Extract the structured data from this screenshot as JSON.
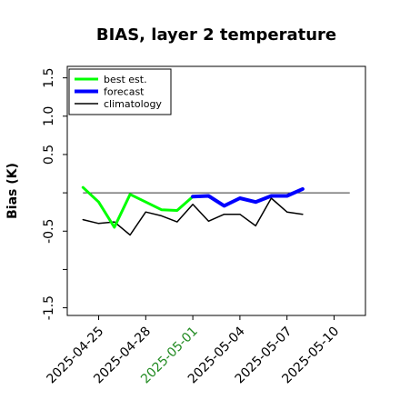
{
  "chart_data": {
    "type": "line",
    "title": "BIAS, layer 2 temperature",
    "xlabel": "",
    "ylabel": "Bias (K)",
    "xlim": [
      "2025-04-23",
      "2025-05-12"
    ],
    "ylim": [
      -1.6,
      1.65
    ],
    "y_ticks": [
      -1.5,
      -1.0,
      -0.5,
      0.0,
      0.5,
      1.0,
      1.5
    ],
    "y_tick_labels": [
      "-1.5",
      "",
      "-0.5",
      "",
      "0.5",
      "1.0",
      "1.5"
    ],
    "x_ticks": [
      "2025-04-25",
      "2025-04-28",
      "2025-05-01",
      "2025-05-04",
      "2025-05-07",
      "2025-05-10"
    ],
    "x_tick_labels": [
      "2025-04-25",
      "2025-04-28",
      "2025-05-01",
      "2025-05-04",
      "2025-05-07",
      "2025-05-10"
    ],
    "x_tick_colors": [
      "#000000",
      "#000000",
      "#228B22",
      "#000000",
      "#000000",
      "#000000"
    ],
    "reference_line": 0.0,
    "grid": false,
    "legend_position": "top-left",
    "series": [
      {
        "name": "best est.",
        "color": "#00ff00",
        "width": 3,
        "x": [
          "2025-04-24",
          "2025-04-25",
          "2025-04-26",
          "2025-04-27",
          "2025-04-28",
          "2025-04-29",
          "2025-04-30",
          "2025-05-01"
        ],
        "y": [
          0.07,
          -0.12,
          -0.45,
          -0.02,
          -0.12,
          -0.22,
          -0.23,
          -0.05
        ]
      },
      {
        "name": "forecast",
        "color": "#0000ff",
        "width": 4,
        "x": [
          "2025-05-01",
          "2025-05-02",
          "2025-05-03",
          "2025-05-04",
          "2025-05-05",
          "2025-05-06",
          "2025-05-07",
          "2025-05-08"
        ],
        "y": [
          -0.05,
          -0.04,
          -0.17,
          -0.07,
          -0.12,
          -0.04,
          -0.04,
          0.05
        ]
      },
      {
        "name": "climatology",
        "color": "#000000",
        "width": 1.5,
        "x": [
          "2025-04-24",
          "2025-04-25",
          "2025-04-26",
          "2025-04-27",
          "2025-04-28",
          "2025-04-29",
          "2025-04-30",
          "2025-05-01",
          "2025-05-02",
          "2025-05-03",
          "2025-05-04",
          "2025-05-05",
          "2025-05-06",
          "2025-05-07",
          "2025-05-08"
        ],
        "y": [
          -0.35,
          -0.4,
          -0.38,
          -0.55,
          -0.25,
          -0.3,
          -0.38,
          -0.15,
          -0.37,
          -0.28,
          -0.28,
          -0.43,
          -0.07,
          -0.25,
          -0.28
        ]
      }
    ]
  }
}
